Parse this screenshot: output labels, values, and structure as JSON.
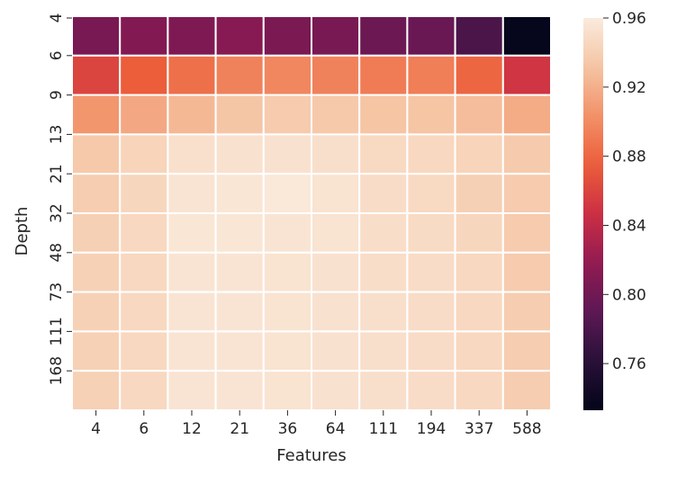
{
  "chart_data": {
    "type": "heatmap",
    "title": "",
    "xlabel": "Features",
    "ylabel": "Depth",
    "x_categories": [
      "4",
      "6",
      "12",
      "21",
      "36",
      "64",
      "111",
      "194",
      "337",
      "588"
    ],
    "y_categories": [
      "4",
      "6",
      "9",
      "13",
      "21",
      "32",
      "48",
      "73",
      "111",
      "168"
    ],
    "values": [
      [
        0.805,
        0.81,
        0.808,
        0.812,
        0.806,
        0.805,
        0.798,
        0.796,
        0.78,
        0.735
      ],
      [
        0.86,
        0.875,
        0.885,
        0.895,
        0.898,
        0.895,
        0.892,
        0.893,
        0.88,
        0.85
      ],
      [
        0.906,
        0.916,
        0.925,
        0.933,
        0.937,
        0.935,
        0.932,
        0.932,
        0.928,
        0.918
      ],
      [
        0.935,
        0.943,
        0.952,
        0.953,
        0.953,
        0.951,
        0.947,
        0.946,
        0.943,
        0.936
      ],
      [
        0.938,
        0.945,
        0.955,
        0.956,
        0.958,
        0.954,
        0.949,
        0.947,
        0.94,
        0.937
      ],
      [
        0.94,
        0.946,
        0.956,
        0.956,
        0.955,
        0.954,
        0.95,
        0.948,
        0.945,
        0.937
      ],
      [
        0.941,
        0.946,
        0.955,
        0.955,
        0.954,
        0.953,
        0.95,
        0.949,
        0.946,
        0.937
      ],
      [
        0.941,
        0.946,
        0.955,
        0.955,
        0.954,
        0.953,
        0.951,
        0.949,
        0.946,
        0.938
      ],
      [
        0.941,
        0.946,
        0.955,
        0.955,
        0.954,
        0.953,
        0.951,
        0.949,
        0.946,
        0.938
      ],
      [
        0.941,
        0.946,
        0.955,
        0.955,
        0.954,
        0.953,
        0.951,
        0.949,
        0.946,
        0.938
      ]
    ],
    "colorbar": {
      "min": 0.733,
      "max": 0.96,
      "ticks": [
        0.76,
        0.8,
        0.84,
        0.88,
        0.92,
        0.96
      ],
      "tick_labels": [
        "0.76",
        "0.80",
        "0.84",
        "0.88",
        "0.92",
        "0.96"
      ]
    },
    "colormap": "rocket",
    "cell_border_color": "#ffffff",
    "grid": false
  }
}
